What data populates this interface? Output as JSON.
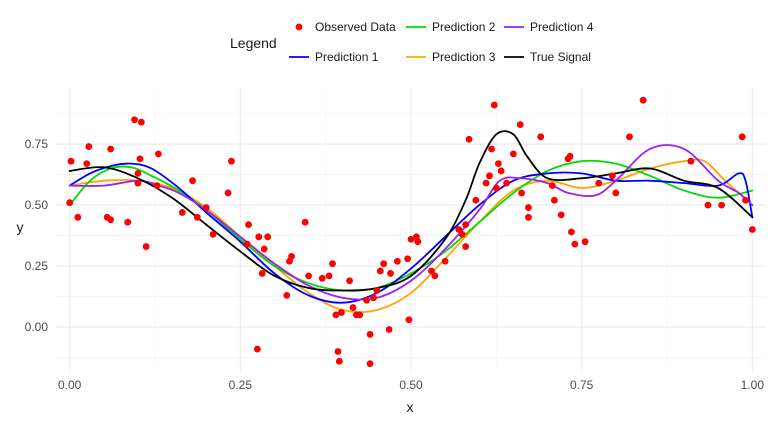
{
  "chart_data": {
    "type": "line",
    "xlabel": "x",
    "ylabel": "y",
    "xlim": [
      -0.02,
      1.02
    ],
    "ylim": [
      -0.18,
      0.98
    ],
    "x_ticks": [
      0.0,
      0.25,
      0.5,
      0.75,
      1.0
    ],
    "x_tick_labels": [
      "0.00",
      "0.25",
      "0.50",
      "0.75",
      "1.00"
    ],
    "y_ticks": [
      0.0,
      0.25,
      0.5,
      0.75
    ],
    "y_tick_labels": [
      "0.00",
      "0.25",
      "0.50",
      "0.75"
    ],
    "grid": true,
    "legend": {
      "title": "Legend",
      "position": "top",
      "entries": [
        "Observed Data",
        "Prediction 1",
        "Prediction 2",
        "Prediction 3",
        "Prediction 4",
        "True Signal"
      ]
    },
    "colors": {
      "Observed Data": "#ff0000",
      "Prediction 1": "#0000ff",
      "Prediction 2": "#00dd00",
      "Prediction 3": "#ffa500",
      "Prediction 4": "#a020f0",
      "True Signal": "#000000"
    },
    "scatter": {
      "name": "Observed Data",
      "points": [
        [
          0.0,
          0.51
        ],
        [
          0.002,
          0.68
        ],
        [
          0.012,
          0.45
        ],
        [
          0.025,
          0.67
        ],
        [
          0.028,
          0.74
        ],
        [
          0.055,
          0.45
        ],
        [
          0.06,
          0.73
        ],
        [
          0.06,
          0.44
        ],
        [
          0.085,
          0.43
        ],
        [
          0.095,
          0.85
        ],
        [
          0.1,
          0.63
        ],
        [
          0.1,
          0.59
        ],
        [
          0.103,
          0.69
        ],
        [
          0.105,
          0.84
        ],
        [
          0.112,
          0.33
        ],
        [
          0.128,
          0.58
        ],
        [
          0.13,
          0.71
        ],
        [
          0.165,
          0.47
        ],
        [
          0.18,
          0.6
        ],
        [
          0.187,
          0.45
        ],
        [
          0.2,
          0.49
        ],
        [
          0.21,
          0.38
        ],
        [
          0.232,
          0.55
        ],
        [
          0.237,
          0.68
        ],
        [
          0.26,
          0.34
        ],
        [
          0.262,
          0.42
        ],
        [
          0.275,
          -0.09
        ],
        [
          0.277,
          0.37
        ],
        [
          0.282,
          0.22
        ],
        [
          0.285,
          0.32
        ],
        [
          0.29,
          0.37
        ],
        [
          0.318,
          0.13
        ],
        [
          0.322,
          0.27
        ],
        [
          0.325,
          0.29
        ],
        [
          0.345,
          0.43
        ],
        [
          0.35,
          0.21
        ],
        [
          0.37,
          0.2
        ],
        [
          0.38,
          0.21
        ],
        [
          0.385,
          0.26
        ],
        [
          0.39,
          0.05
        ],
        [
          0.393,
          -0.1
        ],
        [
          0.395,
          -0.14
        ],
        [
          0.398,
          0.06
        ],
        [
          0.41,
          0.19
        ],
        [
          0.415,
          0.08
        ],
        [
          0.42,
          0.05
        ],
        [
          0.425,
          0.05
        ],
        [
          0.435,
          0.11
        ],
        [
          0.44,
          -0.03
        ],
        [
          0.445,
          0.12
        ],
        [
          0.44,
          -0.15
        ],
        [
          0.45,
          0.15
        ],
        [
          0.455,
          0.23
        ],
        [
          0.46,
          0.26
        ],
        [
          0.468,
          -0.01
        ],
        [
          0.47,
          0.22
        ],
        [
          0.48,
          0.27
        ],
        [
          0.495,
          0.28
        ],
        [
          0.497,
          0.03
        ],
        [
          0.5,
          0.36
        ],
        [
          0.508,
          0.37
        ],
        [
          0.51,
          0.35
        ],
        [
          0.53,
          0.23
        ],
        [
          0.535,
          0.21
        ],
        [
          0.55,
          0.27
        ],
        [
          0.57,
          0.4
        ],
        [
          0.575,
          0.38
        ],
        [
          0.58,
          0.42
        ],
        [
          0.58,
          0.33
        ],
        [
          0.585,
          0.77
        ],
        [
          0.595,
          0.52
        ],
        [
          0.61,
          0.59
        ],
        [
          0.615,
          0.62
        ],
        [
          0.618,
          0.73
        ],
        [
          0.622,
          0.91
        ],
        [
          0.625,
          0.57
        ],
        [
          0.628,
          0.67
        ],
        [
          0.632,
          0.64
        ],
        [
          0.64,
          0.59
        ],
        [
          0.65,
          0.71
        ],
        [
          0.66,
          0.83
        ],
        [
          0.662,
          0.55
        ],
        [
          0.672,
          0.45
        ],
        [
          0.672,
          0.49
        ],
        [
          0.69,
          0.78
        ],
        [
          0.707,
          0.58
        ],
        [
          0.71,
          0.52
        ],
        [
          0.72,
          0.46
        ],
        [
          0.73,
          0.69
        ],
        [
          0.733,
          0.7
        ],
        [
          0.735,
          0.39
        ],
        [
          0.74,
          0.34
        ],
        [
          0.755,
          0.35
        ],
        [
          0.775,
          0.59
        ],
        [
          0.795,
          0.62
        ],
        [
          0.8,
          0.55
        ],
        [
          0.82,
          0.78
        ],
        [
          0.84,
          0.93
        ],
        [
          0.91,
          0.68
        ],
        [
          0.935,
          0.5
        ],
        [
          0.955,
          0.5
        ],
        [
          0.985,
          0.78
        ],
        [
          0.99,
          0.52
        ],
        [
          1.0,
          0.4
        ]
      ]
    },
    "series": [
      {
        "name": "True Signal",
        "x": [
          0.0,
          0.05,
          0.1,
          0.15,
          0.2,
          0.25,
          0.3,
          0.35,
          0.4,
          0.45,
          0.5,
          0.55,
          0.58,
          0.6,
          0.625,
          0.65,
          0.67,
          0.7,
          0.75,
          0.8,
          0.85,
          0.9,
          0.95,
          1.0
        ],
        "y": [
          0.64,
          0.655,
          0.61,
          0.53,
          0.42,
          0.31,
          0.21,
          0.16,
          0.15,
          0.16,
          0.21,
          0.36,
          0.52,
          0.67,
          0.79,
          0.79,
          0.7,
          0.61,
          0.61,
          0.63,
          0.65,
          0.6,
          0.57,
          0.45
        ]
      },
      {
        "name": "Prediction 1",
        "x": [
          0.0,
          0.03,
          0.06,
          0.09,
          0.12,
          0.16,
          0.2,
          0.25,
          0.3,
          0.35,
          0.4,
          0.45,
          0.5,
          0.55,
          0.6,
          0.65,
          0.7,
          0.75,
          0.8,
          0.85,
          0.9,
          0.95,
          0.98,
          0.99,
          1.0
        ],
        "y": [
          0.58,
          0.63,
          0.66,
          0.67,
          0.65,
          0.57,
          0.47,
          0.35,
          0.22,
          0.13,
          0.1,
          0.14,
          0.24,
          0.37,
          0.5,
          0.6,
          0.63,
          0.63,
          0.6,
          0.6,
          0.59,
          0.58,
          0.63,
          0.6,
          0.45
        ]
      },
      {
        "name": "Prediction 2",
        "x": [
          0.0,
          0.03,
          0.06,
          0.09,
          0.12,
          0.16,
          0.2,
          0.25,
          0.3,
          0.35,
          0.4,
          0.45,
          0.5,
          0.55,
          0.6,
          0.65,
          0.7,
          0.75,
          0.8,
          0.85,
          0.9,
          0.95,
          1.0
        ],
        "y": [
          0.5,
          0.6,
          0.65,
          0.655,
          0.62,
          0.56,
          0.48,
          0.36,
          0.25,
          0.18,
          0.15,
          0.16,
          0.22,
          0.31,
          0.43,
          0.55,
          0.64,
          0.68,
          0.67,
          0.62,
          0.56,
          0.53,
          0.56
        ]
      },
      {
        "name": "Prediction 3",
        "x": [
          0.0,
          0.05,
          0.1,
          0.15,
          0.2,
          0.25,
          0.3,
          0.35,
          0.4,
          0.45,
          0.5,
          0.55,
          0.6,
          0.65,
          0.7,
          0.75,
          0.8,
          0.85,
          0.9,
          0.93,
          0.96,
          1.0
        ],
        "y": [
          0.58,
          0.6,
          0.6,
          0.57,
          0.49,
          0.37,
          0.25,
          0.14,
          0.07,
          0.07,
          0.14,
          0.28,
          0.43,
          0.56,
          0.6,
          0.57,
          0.6,
          0.65,
          0.68,
          0.68,
          0.6,
          0.5
        ]
      },
      {
        "name": "Prediction 4",
        "x": [
          0.0,
          0.05,
          0.1,
          0.13,
          0.16,
          0.2,
          0.25,
          0.3,
          0.35,
          0.4,
          0.45,
          0.5,
          0.55,
          0.6,
          0.63,
          0.66,
          0.7,
          0.73,
          0.77,
          0.8,
          0.85,
          0.9,
          0.95,
          0.98,
          1.0
        ],
        "y": [
          0.58,
          0.58,
          0.6,
          0.58,
          0.55,
          0.48,
          0.37,
          0.26,
          0.17,
          0.12,
          0.12,
          0.19,
          0.32,
          0.48,
          0.6,
          0.61,
          0.59,
          0.55,
          0.54,
          0.6,
          0.73,
          0.73,
          0.6,
          0.55,
          0.5
        ]
      }
    ]
  }
}
